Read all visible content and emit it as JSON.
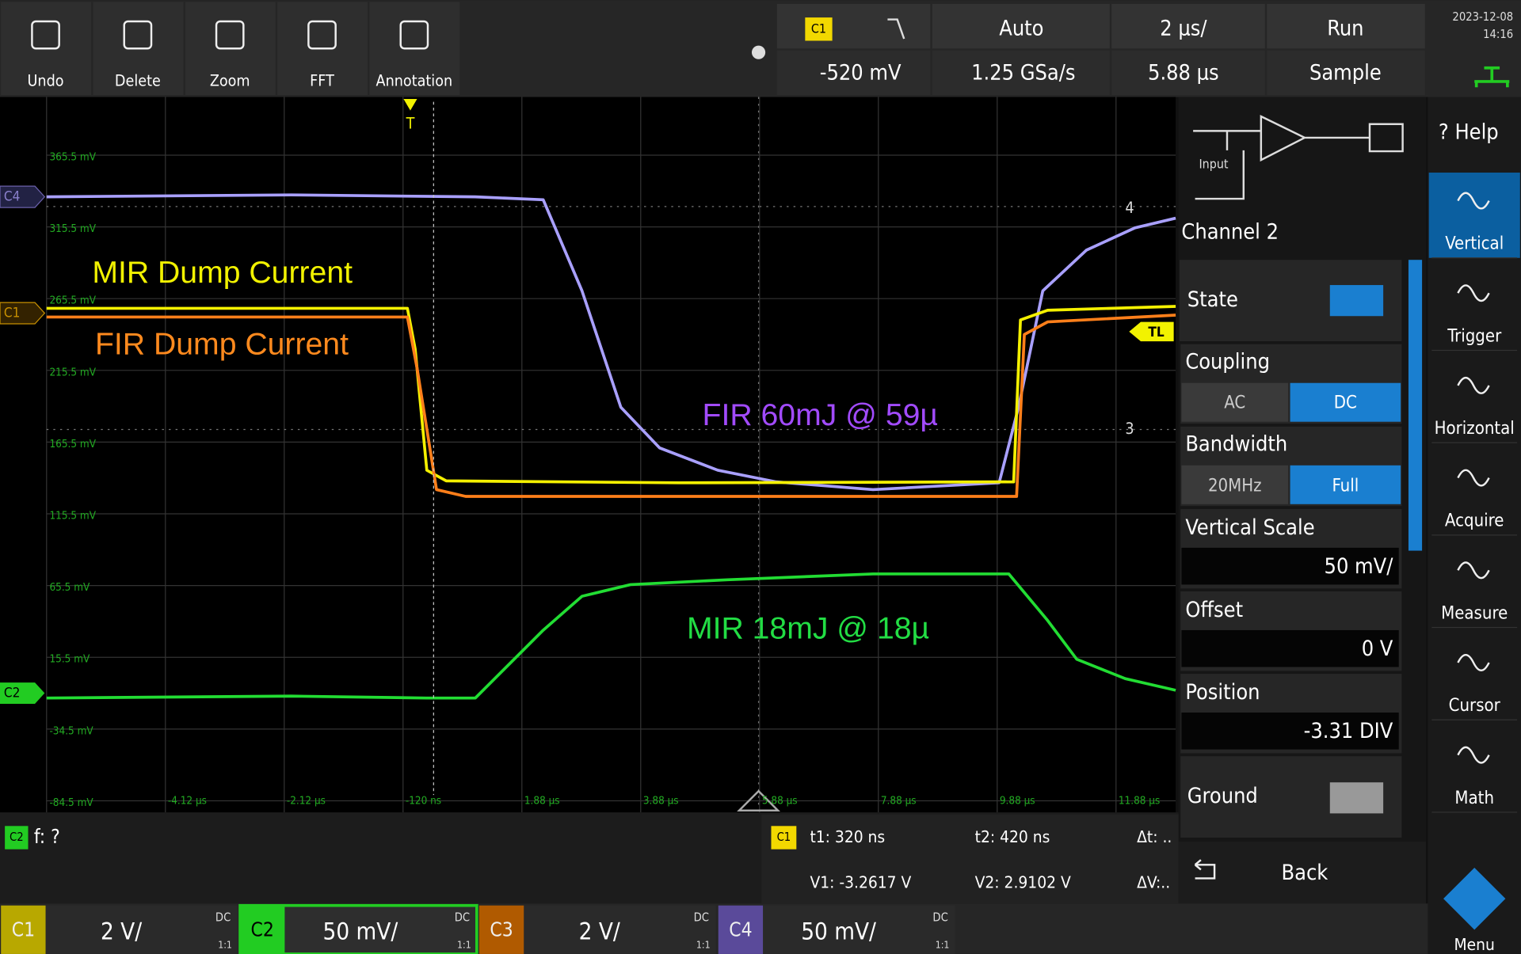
{
  "toolbar": {
    "buttons": [
      "Undo",
      "Delete",
      "Zoom",
      "FFT",
      "Annotation"
    ]
  },
  "status": {
    "trigger_source": "C1",
    "trigger_level": "-520 mV",
    "trigger_mode": "Auto",
    "sample_rate": "1.25 GSa/s",
    "time_scale": "2 µs/",
    "time_position": "5.88 µs",
    "run_state": "Run",
    "acquire_mode": "Sample",
    "date": "2023-12-08",
    "time": "14:16"
  },
  "display": {
    "y_labels": [
      "365.5 mV",
      "315.5 mV",
      "265.5 mV",
      "215.5 mV",
      "165.5 mV",
      "115.5 mV",
      "65.5 mV",
      "15.5 mV",
      "-34.5 mV",
      "-84.5 mV"
    ],
    "x_labels": [
      "-4.12 µs",
      "-2.12 µs",
      "-120 ns",
      "1.88 µs",
      "3.88 µs",
      "5.88 µs",
      "7.88 µs",
      "9.88 µs",
      "11.88 µs"
    ],
    "markers": {
      "c4": "C4",
      "c1": "C1",
      "c2": "C2",
      "ref4": "4",
      "ref3": "3",
      "trigger": "T",
      "trigger_level": "TL"
    }
  },
  "annotations": [
    {
      "text": "MIR Dump Current",
      "color": "#f2f200"
    },
    {
      "text": "FIR Dump Current",
      "color": "#ff8a1e"
    },
    {
      "text": "FIR 60mJ @ 59µ",
      "color": "#a24bff"
    },
    {
      "text": "MIR 18mJ @ 18µ",
      "color": "#22dd44"
    }
  ],
  "panel": {
    "diagram_label": "Input",
    "title": "Channel 2",
    "state": "State",
    "coupling": "Coupling",
    "coupling_options": [
      "AC",
      "DC"
    ],
    "bandwidth": "Bandwidth",
    "bandwidth_options": [
      "20MHz",
      "Full"
    ],
    "vertical_scale": "Vertical Scale",
    "vertical_scale_value": "50 mV/",
    "offset": "Offset",
    "offset_value": "0 V",
    "position": "Position",
    "position_value": "-3.31 DIV",
    "ground": "Ground",
    "back": "Back"
  },
  "sidebar": {
    "help": "? Help",
    "items": [
      "Vertical",
      "Trigger",
      "Horizontal",
      "Acquire",
      "Measure",
      "Cursor",
      "Math"
    ],
    "menu": "Menu"
  },
  "measure": {
    "channel": "C2",
    "label": "f: ?"
  },
  "cursor": {
    "channel": "C1",
    "t1": "t1: 320 ns",
    "t2": "t2: 420 ns",
    "dt": "Δt: ..",
    "v1": "V1: -3.2617 V",
    "v2": "V2: 2.9102 V",
    "dv": "ΔV:.."
  },
  "channels": [
    {
      "name": "C1",
      "scale": "2 V/",
      "coupling": "DC",
      "ratio": "1:1",
      "color": "#b8a800"
    },
    {
      "name": "C2",
      "scale": "50 mV/",
      "coupling": "DC",
      "ratio": "1:1",
      "color": "#22cc22"
    },
    {
      "name": "C3",
      "scale": "2 V/",
      "coupling": "DC",
      "ratio": "1:1",
      "color": "#b05a00"
    },
    {
      "name": "C4",
      "scale": "50 mV/",
      "coupling": "DC",
      "ratio": "1:1",
      "color": "#5a4a9a"
    }
  ]
}
